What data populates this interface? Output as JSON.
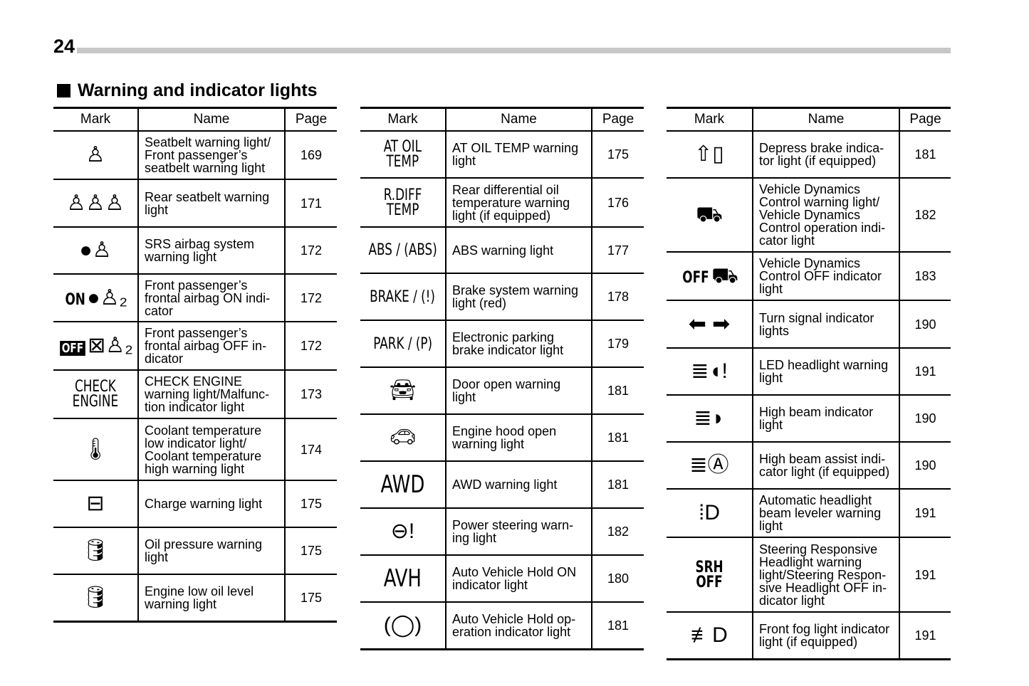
{
  "page_number": "24",
  "section_title": "Warning and indicator lights",
  "headers": {
    "mark": "Mark",
    "name": "Name",
    "page": "Page"
  },
  "tables": [
    {
      "rows": [
        {
          "icon": "seatbelt-icon",
          "mark": "",
          "glyph": "♙",
          "name": "Seatbelt warning light/\nFront passenger’s\nseatbelt warning light",
          "page": "169"
        },
        {
          "icon": "rear-seatbelt-icon",
          "mark": "",
          "glyph": "♙♙♙",
          "name": "Rear seatbelt warning\nlight",
          "page": "171"
        },
        {
          "icon": "airbag-icon",
          "mark": "",
          "glyph": "●♙",
          "name": "SRS airbag system\nwarning light",
          "page": "172"
        },
        {
          "icon": "airbag-on-icon",
          "mark": "ON",
          "glyph": "●♙₂",
          "name": "Front passenger’s\nfrontal airbag ON indi-\ncator",
          "page": "172"
        },
        {
          "icon": "airbag-off-icon",
          "mark": "OFF",
          "glyph": "⊠♙₂",
          "name": "Front passenger’s\nfrontal airbag OFF in-\ndicator",
          "page": "172"
        },
        {
          "icon": "check-engine-icon",
          "mark": "CHECK\nENGINE",
          "glyph": "",
          "name": "CHECK ENGINE\nwarning light/Malfunc-\ntion indicator light",
          "page": "173"
        },
        {
          "icon": "coolant-temperature-icon",
          "mark": "",
          "glyph": "🌡︎",
          "name": "Coolant temperature\nlow indicator light/\nCoolant temperature\nhigh warning light",
          "page": "174"
        },
        {
          "icon": "battery-icon",
          "mark": "",
          "glyph": "⊟",
          "name": "Charge warning light",
          "page": "175"
        },
        {
          "icon": "oil-pressure-icon",
          "mark": "",
          "glyph": "🛢︎",
          "name": "Oil pressure warning\nlight",
          "page": "175"
        },
        {
          "icon": "oil-level-icon",
          "mark": "",
          "glyph": "🛢︎",
          "name": "Engine low oil level\nwarning light",
          "page": "175"
        }
      ]
    },
    {
      "rows": [
        {
          "icon": "at-oil-temp-icon",
          "mark": "AT OIL\nTEMP",
          "glyph": "",
          "name": "AT OIL TEMP warning\nlight",
          "page": "175"
        },
        {
          "icon": "rdiff-temp-icon",
          "mark": "R.DIFF\nTEMP",
          "glyph": "",
          "name": "Rear differential oil\ntemperature warning\nlight (if equipped)",
          "page": "176"
        },
        {
          "icon": "abs-icon",
          "mark": "ABS / (ABS)",
          "glyph": "",
          "name": "ABS warning light",
          "page": "177"
        },
        {
          "icon": "brake-icon",
          "mark": "BRAKE / (!)",
          "glyph": "",
          "name": "Brake system warning\nlight (red)",
          "page": "178"
        },
        {
          "icon": "parking-brake-icon",
          "mark": "PARK / (P)",
          "glyph": "",
          "name": "Electronic parking\nbrake indicator light",
          "page": "179"
        },
        {
          "icon": "door-open-icon",
          "mark": "",
          "glyph": "🚘︎",
          "name": "Door open warning\nlight",
          "page": "181"
        },
        {
          "icon": "hood-open-icon",
          "mark": "",
          "glyph": "🚗︎",
          "name": "Engine hood open\nwarning light",
          "page": "181"
        },
        {
          "icon": "awd-icon",
          "mark": "AWD",
          "glyph": "",
          "name": "AWD warning light",
          "page": "181"
        },
        {
          "icon": "power-steering-icon",
          "mark": "",
          "glyph": "⊖!",
          "name": "Power steering warn-\ning light",
          "page": "182"
        },
        {
          "icon": "avh-icon",
          "mark": "AVH",
          "glyph": "",
          "name": "Auto Vehicle Hold ON\nindicator light",
          "page": "180"
        },
        {
          "icon": "avh-operation-icon",
          "mark": "",
          "glyph": "(◯)",
          "name": "Auto Vehicle Hold op-\neration indicator light",
          "page": "181"
        }
      ]
    },
    {
      "rows": [
        {
          "icon": "depress-brake-icon",
          "mark": "",
          "glyph": "⇧▯",
          "name": "Depress brake indica-\ntor light (if equipped)",
          "page": "181"
        },
        {
          "icon": "vehicle-dynamics-icon",
          "mark": "",
          "glyph": "⛟",
          "name": "Vehicle Dynamics\nControl warning light/\nVehicle Dynamics\nControl operation indi-\ncator light",
          "page": "182"
        },
        {
          "icon": "vdc-off-icon",
          "mark": "OFF",
          "glyph": "⛟",
          "name": "Vehicle Dynamics\nControl OFF indicator\nlight",
          "page": "183"
        },
        {
          "icon": "turn-signal-icon",
          "mark": "",
          "glyph": "⬅ ➡",
          "name": "Turn signal indicator\nlights",
          "page": "190"
        },
        {
          "icon": "led-headlight-icon",
          "mark": "",
          "glyph": "≣◖!",
          "name": "LED headlight warning\nlight",
          "page": "191"
        },
        {
          "icon": "high-beam-icon",
          "mark": "",
          "glyph": "≣◗",
          "name": "High beam indicator\nlight",
          "page": "190"
        },
        {
          "icon": "high-beam-assist-icon",
          "mark": "",
          "glyph": "≣Ⓐ",
          "name": "High beam assist indi-\ncator light (if equipped)",
          "page": "190"
        },
        {
          "icon": "headlight-leveler-icon",
          "mark": "",
          "glyph": "⁞D",
          "name": "Automatic headlight\nbeam leveler warning\nlight",
          "page": "191"
        },
        {
          "icon": "srh-off-icon",
          "mark": "SRH\nOFF",
          "glyph": "",
          "name": "Steering Responsive\nHeadlight warning\nlight/Steering Respon-\nsive Headlight OFF in-\ndicator light",
          "page": "191"
        },
        {
          "icon": "front-fog-icon",
          "mark": "",
          "glyph": "≢D",
          "name": "Front fog light indicator\nlight (if equipped)",
          "page": "191"
        }
      ]
    }
  ]
}
